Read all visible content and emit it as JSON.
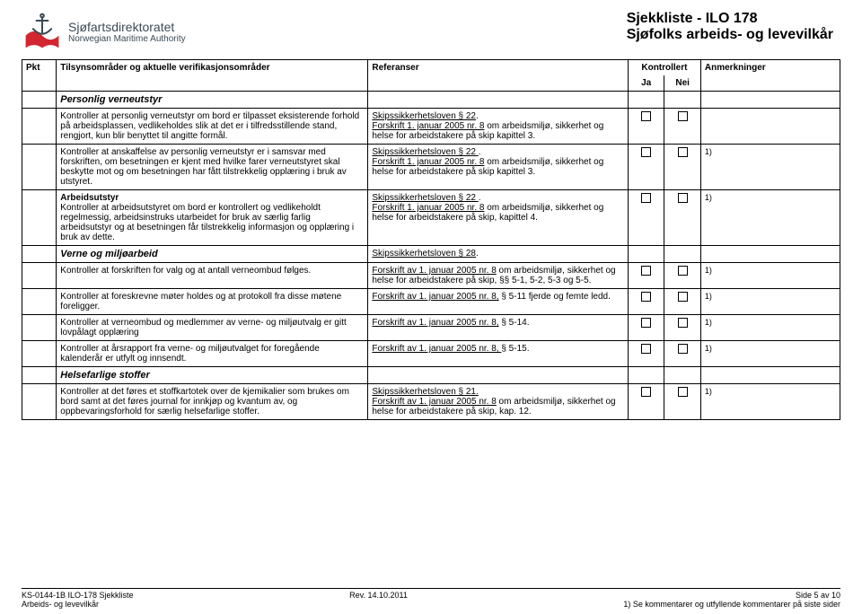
{
  "logo": {
    "line1": "Sjøfartsdirektoratet",
    "line2": "Norwegian Maritime Authority",
    "colors": {
      "wave": "#d22630",
      "text": "#3a4a55",
      "bg": "#ffffff"
    }
  },
  "title": {
    "line1": "Sjekkliste - ILO 178",
    "line2": "Sjøfolks arbeids- og levevilkår"
  },
  "columns": {
    "pkt": "Pkt",
    "desc": "Tilsynsområder og aktuelle verifikasjonsområder",
    "ref": "Referanser",
    "kontrollert": "Kontrollert",
    "ja": "Ja",
    "nei": "Nei",
    "anm": "Anmerkninger"
  },
  "sections": [
    {
      "heading": "Personlig verneutstyr"
    },
    {
      "desc": "Kontroller at personlig verneutstyr om bord er tilpasset eksisterende forhold på arbeidsplassen, vedlikeholdes slik at det er i tilfredsstillende stand, rengjort, kun blir benyttet til angitte formål.",
      "ref": [
        {
          "link": "Skipssikkerhetsloven § 22",
          "text": "."
        },
        {
          "link": "Forskrift 1. januar 2005 nr. 8",
          "text": " om arbeidsmiljø, sikkerhet og helse for arbeidstakere på skip kapittel 3."
        }
      ],
      "note": ""
    },
    {
      "desc": "Kontroller at anskaffelse av personlig verneutstyr er i samsvar med forskriften, om besetningen er kjent med hvilke farer verneutstyret skal beskytte mot og om besetningen har fått tilstrekkelig opplæring i bruk av utstyret.",
      "ref": [
        {
          "link": "Skipssikkerhetsloven § 22 ",
          "text": "."
        },
        {
          "link": "Forskrift 1. januar 2005 nr. 8",
          "text": " om arbeidsmiljø, sikkerhet og helse for arbeidstakere på skip kapittel 3."
        }
      ],
      "note": "1)"
    },
    {
      "desc_lead": "Arbeidsutstyr",
      "desc": "Kontroller at arbeidsutstyret om bord er kontrollert og vedlikeholdt regelmessig, arbeidsinstruks utarbeidet for bruk av særlig farlig arbeidsutstyr og at besetningen får tilstrekkelig informasjon og opplæring i bruk av dette.",
      "ref": [
        {
          "link": "Skipssikkerhetsloven § 22 ",
          "text": "."
        },
        {
          "link": "Forskrift 1. januar 2005 nr. 8",
          "text": " om arbeidsmiljø, sikkerhet og helse for arbeidstakere på skip, kapittel 4."
        }
      ],
      "note": "1)"
    },
    {
      "heading": "Verne og miljøarbeid",
      "ref": [
        {
          "link": "Skipssikkerhetsloven § 28",
          "text": "."
        }
      ]
    },
    {
      "desc": "Kontroller at forskriften for valg og at antall verneombud følges.",
      "ref": [
        {
          "link": "Forskrift av 1. januar 2005 nr. 8",
          "text": " om arbeidsmiljø, sikkerhet og helse for arbeidstakere på skip, §§ 5-1, 5-2, 5-3 og 5-5."
        }
      ],
      "note": "1)"
    },
    {
      "desc": "Kontroller at foreskrevne møter holdes og at protokoll fra disse møtene foreligger.",
      "ref": [
        {
          "link": "Forskrift av 1. januar 2005 nr. 8,",
          "text": " § 5-11 fjerde og femte ledd."
        }
      ],
      "note": "1)"
    },
    {
      "desc": "Kontroller at verneombud og medlemmer av verne- og miljøutvalg er gitt lovpålagt opplæring",
      "ref": [
        {
          "link": "Forskrift av 1. januar 2005 nr. 8,",
          "text": " § 5-14."
        }
      ],
      "note": "1)"
    },
    {
      "desc": "Kontroller at årsrapport fra verne- og miljøutvalget for foregående kalenderår er utfylt og innsendt.",
      "ref": [
        {
          "link": "Forskrift av 1. januar 2005 nr. 8, ",
          "text": " § 5-15."
        }
      ],
      "note": "1)"
    },
    {
      "heading": "Helsefarlige stoffer"
    },
    {
      "desc": "Kontroller at det føres et stoffkartotek over de kjemikalier som brukes om bord samt at det føres journal for innkjøp og kvantum av, og oppbevaringsforhold for særlig helsefarlige stoffer.",
      "ref": [
        {
          "link": "Skipssikkerhetsloven § 21.",
          "text": ""
        },
        {
          "link": "Forskrift av 1. januar 2005 nr. 8",
          "text": " om arbeidsmiljø, sikkerhet og helse for arbeidstakere på skip, kap. 12."
        }
      ],
      "note": "1)"
    }
  ],
  "footer": {
    "left1": "KS-0144-1B ILO-178 Sjekkliste",
    "left2": "Arbeids- og levevilkår",
    "center": "Rev. 14.10.2011",
    "right1": "Side 5 av 10",
    "right2": "1) Se kommentarer og utfyllende kommentarer på siste sider"
  }
}
